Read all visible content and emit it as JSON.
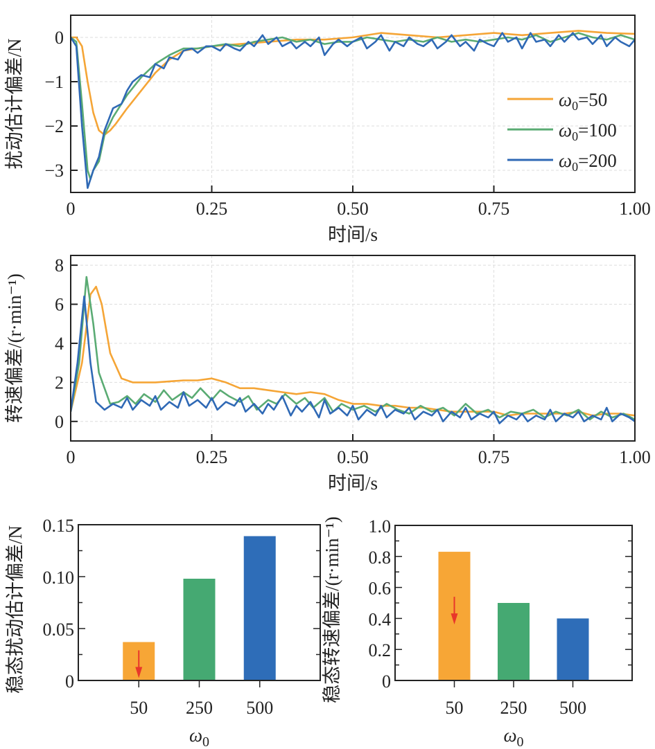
{
  "colors": {
    "w50": "#f5a536",
    "w100": "#5aab73",
    "w200": "#2f69b5",
    "arrow": "#e8372a",
    "bar50": "#f7a636",
    "bar250": "#45a972",
    "bar500": "#2e6db8"
  },
  "chart_data": [
    {
      "type": "line",
      "ylabel": "扰动估计偏差/N",
      "xlabel": "时间/s",
      "xlim": [
        0,
        1.0
      ],
      "ylim": [
        -3.5,
        0.5
      ],
      "xticks": [
        0,
        0.25,
        0.5,
        0.75,
        1.0
      ],
      "xtick_labels": [
        "0",
        "0.25",
        "0.50",
        "0.75",
        "1.00"
      ],
      "yticks": [
        0,
        -1,
        -2,
        -3
      ],
      "ytick_labels": [
        "0",
        "−1",
        "−2",
        "−3"
      ],
      "grid": true,
      "legend": "right",
      "series": [
        {
          "name": "ω0=50",
          "name_main": "ω",
          "name_sub": "0",
          "name_rest": "=50",
          "color": "#f5a536",
          "x": [
            0,
            0.01,
            0.02,
            0.03,
            0.04,
            0.05,
            0.06,
            0.07,
            0.08,
            0.1,
            0.125,
            0.15,
            0.175,
            0.2,
            0.25,
            0.3,
            0.35,
            0.4,
            0.45,
            0.5,
            0.55,
            0.6,
            0.65,
            0.7,
            0.75,
            0.8,
            0.85,
            0.9,
            0.95,
            1.0
          ],
          "y": [
            0,
            0,
            -0.2,
            -1.0,
            -1.7,
            -2.1,
            -2.2,
            -2.1,
            -1.95,
            -1.6,
            -1.2,
            -0.8,
            -0.5,
            -0.3,
            -0.2,
            -0.15,
            -0.1,
            -0.05,
            -0.05,
            0,
            0.1,
            0.05,
            0.0,
            0.05,
            0.1,
            0.05,
            0.1,
            0.15,
            0.1,
            0.08
          ]
        },
        {
          "name": "ω0=100",
          "name_main": "ω",
          "name_sub": "0",
          "name_rest": "=100",
          "color": "#5aab73",
          "x": [
            0,
            0.01,
            0.02,
            0.03,
            0.035,
            0.04,
            0.05,
            0.06,
            0.075,
            0.1,
            0.125,
            0.15,
            0.175,
            0.2,
            0.225,
            0.25,
            0.275,
            0.3,
            0.325,
            0.35,
            0.375,
            0.4,
            0.425,
            0.45,
            0.475,
            0.5,
            0.525,
            0.55,
            0.575,
            0.6,
            0.625,
            0.65,
            0.675,
            0.7,
            0.725,
            0.75,
            0.775,
            0.8,
            0.825,
            0.85,
            0.875,
            0.9,
            0.925,
            0.95,
            0.975,
            1.0
          ],
          "y": [
            0,
            -0.1,
            -1.5,
            -3.0,
            -3.2,
            -3.0,
            -2.8,
            -2.2,
            -1.8,
            -1.3,
            -0.9,
            -0.6,
            -0.4,
            -0.25,
            -0.25,
            -0.2,
            -0.15,
            -0.2,
            -0.1,
            -0.05,
            0.0,
            -0.1,
            -0.05,
            -0.15,
            -0.1,
            -0.1,
            0.0,
            -0.05,
            -0.1,
            -0.05,
            -0.1,
            0.0,
            -0.1,
            -0.05,
            -0.1,
            -0.05,
            0.0,
            -0.05,
            0.05,
            -0.1,
            0.0,
            0.1,
            0.0,
            -0.05,
            0.05,
            -0.05
          ]
        },
        {
          "name": "ω0=200",
          "name_main": "ω",
          "name_sub": "0",
          "name_rest": "=200",
          "color": "#2f69b5",
          "x": [
            0,
            0.01,
            0.02,
            0.03,
            0.04,
            0.05,
            0.06,
            0.075,
            0.09,
            0.1,
            0.11,
            0.125,
            0.14,
            0.15,
            0.165,
            0.175,
            0.19,
            0.2,
            0.215,
            0.225,
            0.24,
            0.25,
            0.265,
            0.275,
            0.29,
            0.3,
            0.315,
            0.325,
            0.34,
            0.35,
            0.365,
            0.375,
            0.39,
            0.4,
            0.415,
            0.425,
            0.44,
            0.45,
            0.465,
            0.475,
            0.49,
            0.5,
            0.515,
            0.525,
            0.54,
            0.55,
            0.565,
            0.575,
            0.59,
            0.6,
            0.615,
            0.625,
            0.64,
            0.65,
            0.665,
            0.675,
            0.69,
            0.7,
            0.715,
            0.725,
            0.74,
            0.75,
            0.765,
            0.775,
            0.79,
            0.8,
            0.815,
            0.825,
            0.84,
            0.85,
            0.865,
            0.875,
            0.89,
            0.9,
            0.915,
            0.925,
            0.94,
            0.95,
            0.965,
            0.975,
            0.99,
            1.0
          ],
          "y": [
            0,
            -0.2,
            -2.0,
            -3.4,
            -3.0,
            -2.7,
            -2.1,
            -1.6,
            -1.5,
            -1.2,
            -1.0,
            -0.85,
            -0.9,
            -0.6,
            -0.7,
            -0.45,
            -0.5,
            -0.3,
            -0.25,
            -0.35,
            -0.2,
            -0.2,
            -0.3,
            -0.15,
            -0.25,
            -0.3,
            -0.1,
            -0.2,
            0.05,
            -0.15,
            0.0,
            -0.2,
            -0.1,
            -0.25,
            -0.1,
            -0.2,
            0.0,
            -0.4,
            -0.15,
            -0.05,
            -0.2,
            -0.1,
            0.0,
            -0.25,
            -0.1,
            0.05,
            -0.3,
            -0.1,
            -0.2,
            0.0,
            -0.15,
            -0.2,
            -0.05,
            -0.25,
            -0.1,
            0.05,
            -0.2,
            -0.1,
            -0.3,
            -0.05,
            -0.15,
            -0.2,
            0.1,
            -0.1,
            0.0,
            -0.25,
            0.1,
            -0.1,
            -0.05,
            -0.2,
            0.05,
            -0.1,
            0.1,
            -0.05,
            0.0,
            -0.15,
            0.05,
            -0.2,
            0.0,
            -0.1,
            -0.2,
            -0.05
          ]
        }
      ]
    },
    {
      "type": "line",
      "ylabel": "转速偏差/(r·min⁻¹)",
      "xlabel": "时间/s",
      "xlim": [
        0,
        1.0
      ],
      "ylim": [
        -1,
        8.5
      ],
      "xticks": [
        0,
        0.25,
        0.5,
        0.75,
        1.0
      ],
      "xtick_labels": [
        "0",
        "0.25",
        "0.50",
        "0.75",
        "1.00"
      ],
      "yticks": [
        0,
        2,
        4,
        6,
        8
      ],
      "ytick_labels": [
        "0",
        "2",
        "4",
        "6",
        "8"
      ],
      "grid": true,
      "series": [
        {
          "name": "ω0=50",
          "color": "#f5a536",
          "x": [
            0,
            0.02,
            0.035,
            0.045,
            0.055,
            0.07,
            0.09,
            0.11,
            0.15,
            0.2,
            0.225,
            0.25,
            0.275,
            0.3,
            0.325,
            0.35,
            0.375,
            0.4,
            0.425,
            0.45,
            0.475,
            0.5,
            0.525,
            0.55,
            0.575,
            0.6,
            0.625,
            0.65,
            0.675,
            0.7,
            0.725,
            0.75,
            0.775,
            0.8,
            0.825,
            0.85,
            0.875,
            0.9,
            0.925,
            0.95,
            0.975,
            1.0
          ],
          "y": [
            0.5,
            3.0,
            6.5,
            6.9,
            6.0,
            3.5,
            2.2,
            2.0,
            2.0,
            2.1,
            2.1,
            2.2,
            2.0,
            1.7,
            1.7,
            1.6,
            1.5,
            1.4,
            1.5,
            1.4,
            1.1,
            0.9,
            0.9,
            0.8,
            0.8,
            0.7,
            0.7,
            0.6,
            0.5,
            0.5,
            0.5,
            0.5,
            0.3,
            0.4,
            0.4,
            0.4,
            0.4,
            0.5,
            0.3,
            0.4,
            0.4,
            0.3
          ]
        },
        {
          "name": "ω0=100",
          "color": "#5aab73",
          "x": [
            0,
            0.015,
            0.028,
            0.04,
            0.05,
            0.06,
            0.07,
            0.085,
            0.1,
            0.115,
            0.13,
            0.15,
            0.165,
            0.18,
            0.2,
            0.215,
            0.23,
            0.25,
            0.265,
            0.28,
            0.3,
            0.315,
            0.33,
            0.35,
            0.365,
            0.38,
            0.4,
            0.415,
            0.43,
            0.45,
            0.465,
            0.48,
            0.5,
            0.52,
            0.54,
            0.56,
            0.58,
            0.6,
            0.62,
            0.64,
            0.66,
            0.68,
            0.7,
            0.72,
            0.74,
            0.76,
            0.78,
            0.8,
            0.82,
            0.84,
            0.86,
            0.88,
            0.9,
            0.92,
            0.94,
            0.96,
            0.98,
            1.0
          ],
          "y": [
            0.5,
            3.0,
            7.4,
            5.0,
            2.5,
            1.7,
            0.9,
            1.0,
            1.3,
            0.9,
            1.4,
            1.0,
            1.6,
            1.1,
            1.5,
            1.2,
            1.7,
            1.1,
            1.6,
            1.3,
            1.0,
            1.3,
            0.6,
            1.1,
            0.9,
            1.4,
            0.9,
            1.2,
            0.7,
            1.2,
            0.5,
            0.9,
            0.6,
            0.8,
            0.5,
            0.9,
            0.6,
            0.4,
            0.8,
            0.5,
            0.7,
            0.3,
            0.9,
            0.4,
            0.6,
            0.2,
            0.5,
            0.4,
            0.6,
            0.2,
            0.5,
            0.3,
            0.6,
            0.1,
            0.5,
            0.2,
            0.4,
            0.1
          ]
        },
        {
          "name": "ω0=200",
          "color": "#2f69b5",
          "x": [
            0,
            0.012,
            0.024,
            0.035,
            0.045,
            0.06,
            0.075,
            0.09,
            0.1,
            0.11,
            0.125,
            0.14,
            0.15,
            0.16,
            0.175,
            0.19,
            0.2,
            0.21,
            0.225,
            0.24,
            0.25,
            0.26,
            0.275,
            0.29,
            0.3,
            0.31,
            0.325,
            0.34,
            0.35,
            0.36,
            0.375,
            0.39,
            0.4,
            0.41,
            0.425,
            0.44,
            0.45,
            0.46,
            0.475,
            0.49,
            0.5,
            0.51,
            0.525,
            0.54,
            0.55,
            0.56,
            0.575,
            0.59,
            0.6,
            0.61,
            0.625,
            0.64,
            0.65,
            0.66,
            0.675,
            0.69,
            0.7,
            0.71,
            0.725,
            0.74,
            0.75,
            0.76,
            0.775,
            0.79,
            0.8,
            0.81,
            0.825,
            0.84,
            0.85,
            0.86,
            0.875,
            0.89,
            0.9,
            0.91,
            0.925,
            0.94,
            0.95,
            0.96,
            0.975,
            0.99,
            1.0
          ],
          "y": [
            0.5,
            3.0,
            6.4,
            3.0,
            1.0,
            0.6,
            0.9,
            0.7,
            1.2,
            0.6,
            1.1,
            0.8,
            1.3,
            0.6,
            1.0,
            0.7,
            1.5,
            0.8,
            1.1,
            0.7,
            1.2,
            0.6,
            1.0,
            0.8,
            1.2,
            0.5,
            0.9,
            0.4,
            0.9,
            0.6,
            1.3,
            0.3,
            0.8,
            0.5,
            1.0,
            0.2,
            1.1,
            0.4,
            0.7,
            0.3,
            0.8,
            0.1,
            0.6,
            0.3,
            0.8,
            0.2,
            0.6,
            0.4,
            0.7,
            0.1,
            0.5,
            0.3,
            0.6,
            0.0,
            0.5,
            0.2,
            0.7,
            0.1,
            0.4,
            0.2,
            0.5,
            -0.1,
            0.3,
            0.1,
            0.4,
            0.0,
            0.3,
            0.1,
            0.6,
            0.0,
            0.4,
            0.2,
            0.5,
            0.0,
            0.3,
            0.1,
            0.7,
            0.0,
            0.4,
            0.2,
            0.0
          ]
        }
      ]
    },
    {
      "type": "bar",
      "ylabel": "稳态扰动估计偏差/N",
      "xlabel": "ω0",
      "xlabel_main": "ω",
      "xlabel_sub": "0",
      "categories": [
        "50",
        "250",
        "500"
      ],
      "values": [
        0.037,
        0.098,
        0.139
      ],
      "ylim": [
        0,
        0.15
      ],
      "yticks": [
        0,
        0.05,
        0.1,
        0.15
      ],
      "ytick_labels": [
        "0",
        "0.05",
        "0.10",
        "0.15"
      ],
      "bar_colors": [
        "#f7a636",
        "#45a972",
        "#2e6db8"
      ],
      "annotation": "red down arrow on 50 bar"
    },
    {
      "type": "bar",
      "ylabel": "稳态转速偏差/(r·min⁻¹)",
      "xlabel": "ω0",
      "xlabel_main": "ω",
      "xlabel_sub": "0",
      "categories": [
        "50",
        "250",
        "500"
      ],
      "values": [
        0.83,
        0.5,
        0.4
      ],
      "ylim": [
        0,
        1.0
      ],
      "yticks": [
        0,
        0.2,
        0.4,
        0.6,
        0.8,
        1.0
      ],
      "ytick_labels": [
        "0",
        "0.2",
        "0.4",
        "0.6",
        "0.8",
        "1.0"
      ],
      "bar_colors": [
        "#f7a636",
        "#45a972",
        "#2e6db8"
      ],
      "annotation": "red down arrow on 50 bar"
    }
  ]
}
